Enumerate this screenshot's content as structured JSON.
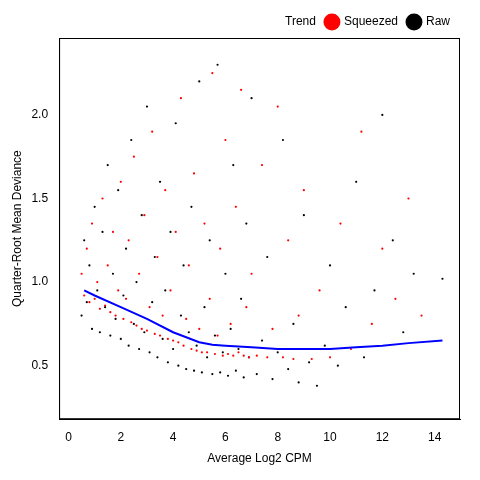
{
  "chart_data": {
    "type": "scatter",
    "x_label": "Average Log2 CPM",
    "y_label": "Quarter-Root Mean Deviance",
    "xlim": [
      -0.36,
      14.97
    ],
    "ylim": [
      0.18,
      2.46
    ],
    "xticks": [
      0,
      2,
      4,
      6,
      8,
      10,
      12,
      14
    ],
    "yticks": [
      0.5,
      {
        "value": 1,
        "label": "1.0"
      },
      1.5,
      {
        "value": 2,
        "label": "2.0"
      }
    ],
    "grid": false,
    "legend": "topright",
    "series": [
      {
        "name": "Raw",
        "color": "#000000",
        "type": "scatter",
        "marker": "point",
        "x": [
          0.5,
          0.6,
          0.7,
          0.8,
          0.9,
          1.0,
          1.1,
          1.2,
          1.3,
          1.4,
          1.5,
          1.6,
          1.7,
          1.8,
          1.9,
          2.0,
          2.1,
          2.2,
          2.3,
          2.4,
          2.5,
          2.6,
          2.7,
          2.8,
          2.9,
          3.0,
          3.1,
          3.2,
          3.3,
          3.4,
          3.5,
          3.6,
          3.7,
          3.8,
          3.9,
          4.0,
          4.1,
          4.2,
          4.3,
          4.4,
          4.5,
          4.6,
          4.7,
          4.8,
          4.9,
          5.0,
          5.1,
          5.2,
          5.3,
          5.4,
          5.5,
          5.6,
          5.7,
          5.8,
          5.9,
          6.0,
          6.1,
          6.2,
          6.3,
          6.4,
          6.5,
          6.6,
          6.7,
          6.8,
          6.9,
          7.0,
          7.2,
          7.4,
          7.6,
          7.8,
          8.0,
          8.2,
          8.4,
          8.6,
          8.8,
          9.0,
          9.2,
          9.5,
          9.8,
          10.0,
          10.3,
          10.6,
          11.0,
          11.3,
          11.7,
          12.0,
          12.4,
          12.8,
          13.2,
          14.3
        ],
        "values": [
          0.8,
          1.25,
          0.88,
          1.1,
          0.72,
          1.45,
          0.95,
          0.7,
          1.3,
          0.85,
          1.7,
          0.68,
          1.05,
          0.78,
          1.55,
          0.66,
          0.92,
          1.2,
          0.62,
          1.85,
          0.75,
          1.0,
          0.6,
          1.4,
          0.7,
          2.05,
          0.58,
          0.88,
          1.15,
          0.55,
          1.6,
          0.66,
          0.95,
          0.52,
          1.3,
          0.6,
          1.95,
          0.5,
          0.8,
          1.1,
          0.48,
          0.7,
          1.45,
          0.47,
          0.62,
          2.2,
          0.46,
          0.85,
          0.55,
          1.25,
          0.45,
          0.68,
          2.3,
          0.46,
          0.58,
          1.05,
          0.44,
          0.72,
          1.7,
          0.47,
          0.6,
          0.9,
          0.43,
          1.35,
          0.55,
          2.1,
          0.45,
          0.65,
          1.15,
          0.42,
          0.58,
          1.85,
          0.48,
          0.75,
          0.4,
          1.4,
          0.52,
          0.38,
          0.62,
          1.1,
          0.5,
          0.85,
          1.6,
          0.55,
          0.95,
          2.0,
          1.25,
          0.7,
          1.05,
          1.02
        ]
      },
      {
        "name": "Squeezed",
        "color": "#ff0000",
        "type": "scatter",
        "marker": "point",
        "x": [
          0.5,
          0.6,
          0.7,
          0.8,
          0.9,
          1.0,
          1.1,
          1.2,
          1.3,
          1.4,
          1.5,
          1.6,
          1.7,
          1.8,
          1.9,
          2.0,
          2.1,
          2.2,
          2.3,
          2.4,
          2.5,
          2.6,
          2.7,
          2.8,
          2.9,
          3.0,
          3.1,
          3.2,
          3.3,
          3.4,
          3.5,
          3.6,
          3.7,
          3.8,
          3.9,
          4.0,
          4.1,
          4.2,
          4.3,
          4.4,
          4.5,
          4.6,
          4.7,
          4.8,
          4.9,
          5.0,
          5.1,
          5.2,
          5.3,
          5.4,
          5.5,
          5.6,
          5.7,
          5.8,
          5.9,
          6.0,
          6.1,
          6.2,
          6.3,
          6.4,
          6.5,
          6.6,
          6.7,
          6.8,
          6.9,
          7.0,
          7.2,
          7.4,
          7.6,
          7.8,
          8.0,
          8.2,
          8.4,
          8.6,
          8.8,
          9.0,
          9.3,
          9.6,
          10.0,
          10.4,
          10.8,
          11.2,
          11.6,
          12.0,
          12.5,
          13.0,
          13.5
        ],
        "values": [
          1.05,
          0.92,
          1.2,
          0.88,
          1.35,
          0.9,
          1.0,
          0.84,
          1.5,
          0.86,
          1.1,
          0.82,
          1.3,
          0.8,
          0.95,
          1.6,
          0.78,
          0.9,
          1.25,
          0.76,
          1.75,
          0.74,
          1.05,
          0.72,
          1.4,
          0.71,
          0.85,
          1.9,
          0.69,
          1.15,
          0.68,
          0.8,
          1.55,
          0.66,
          0.95,
          0.65,
          1.3,
          0.64,
          2.1,
          0.62,
          0.78,
          1.1,
          0.6,
          1.65,
          0.59,
          0.72,
          0.58,
          1.35,
          0.58,
          0.9,
          2.25,
          0.57,
          0.68,
          1.2,
          0.56,
          1.85,
          0.57,
          0.75,
          0.56,
          1.45,
          0.58,
          2.15,
          0.56,
          0.85,
          0.55,
          1.05,
          0.56,
          1.7,
          0.55,
          0.72,
          2.05,
          0.55,
          1.25,
          0.54,
          0.8,
          1.55,
          0.54,
          0.95,
          0.55,
          1.35,
          0.6,
          1.9,
          0.75,
          1.2,
          0.9,
          1.5,
          0.8
        ]
      },
      {
        "name": "Trend",
        "color": "#0000ff",
        "type": "line",
        "marker": "none",
        "line_style": "solid",
        "x": [
          0.6,
          1.0,
          2.0,
          3.0,
          4.0,
          5.0,
          5.5,
          6.0,
          7.0,
          8.0,
          9.0,
          10.0,
          11.0,
          12.0,
          13.0,
          14.3
        ],
        "values": [
          0.95,
          0.92,
          0.85,
          0.78,
          0.7,
          0.64,
          0.625,
          0.62,
          0.61,
          0.6,
          0.6,
          0.6,
          0.61,
          0.62,
          0.635,
          0.65
        ]
      }
    ]
  }
}
